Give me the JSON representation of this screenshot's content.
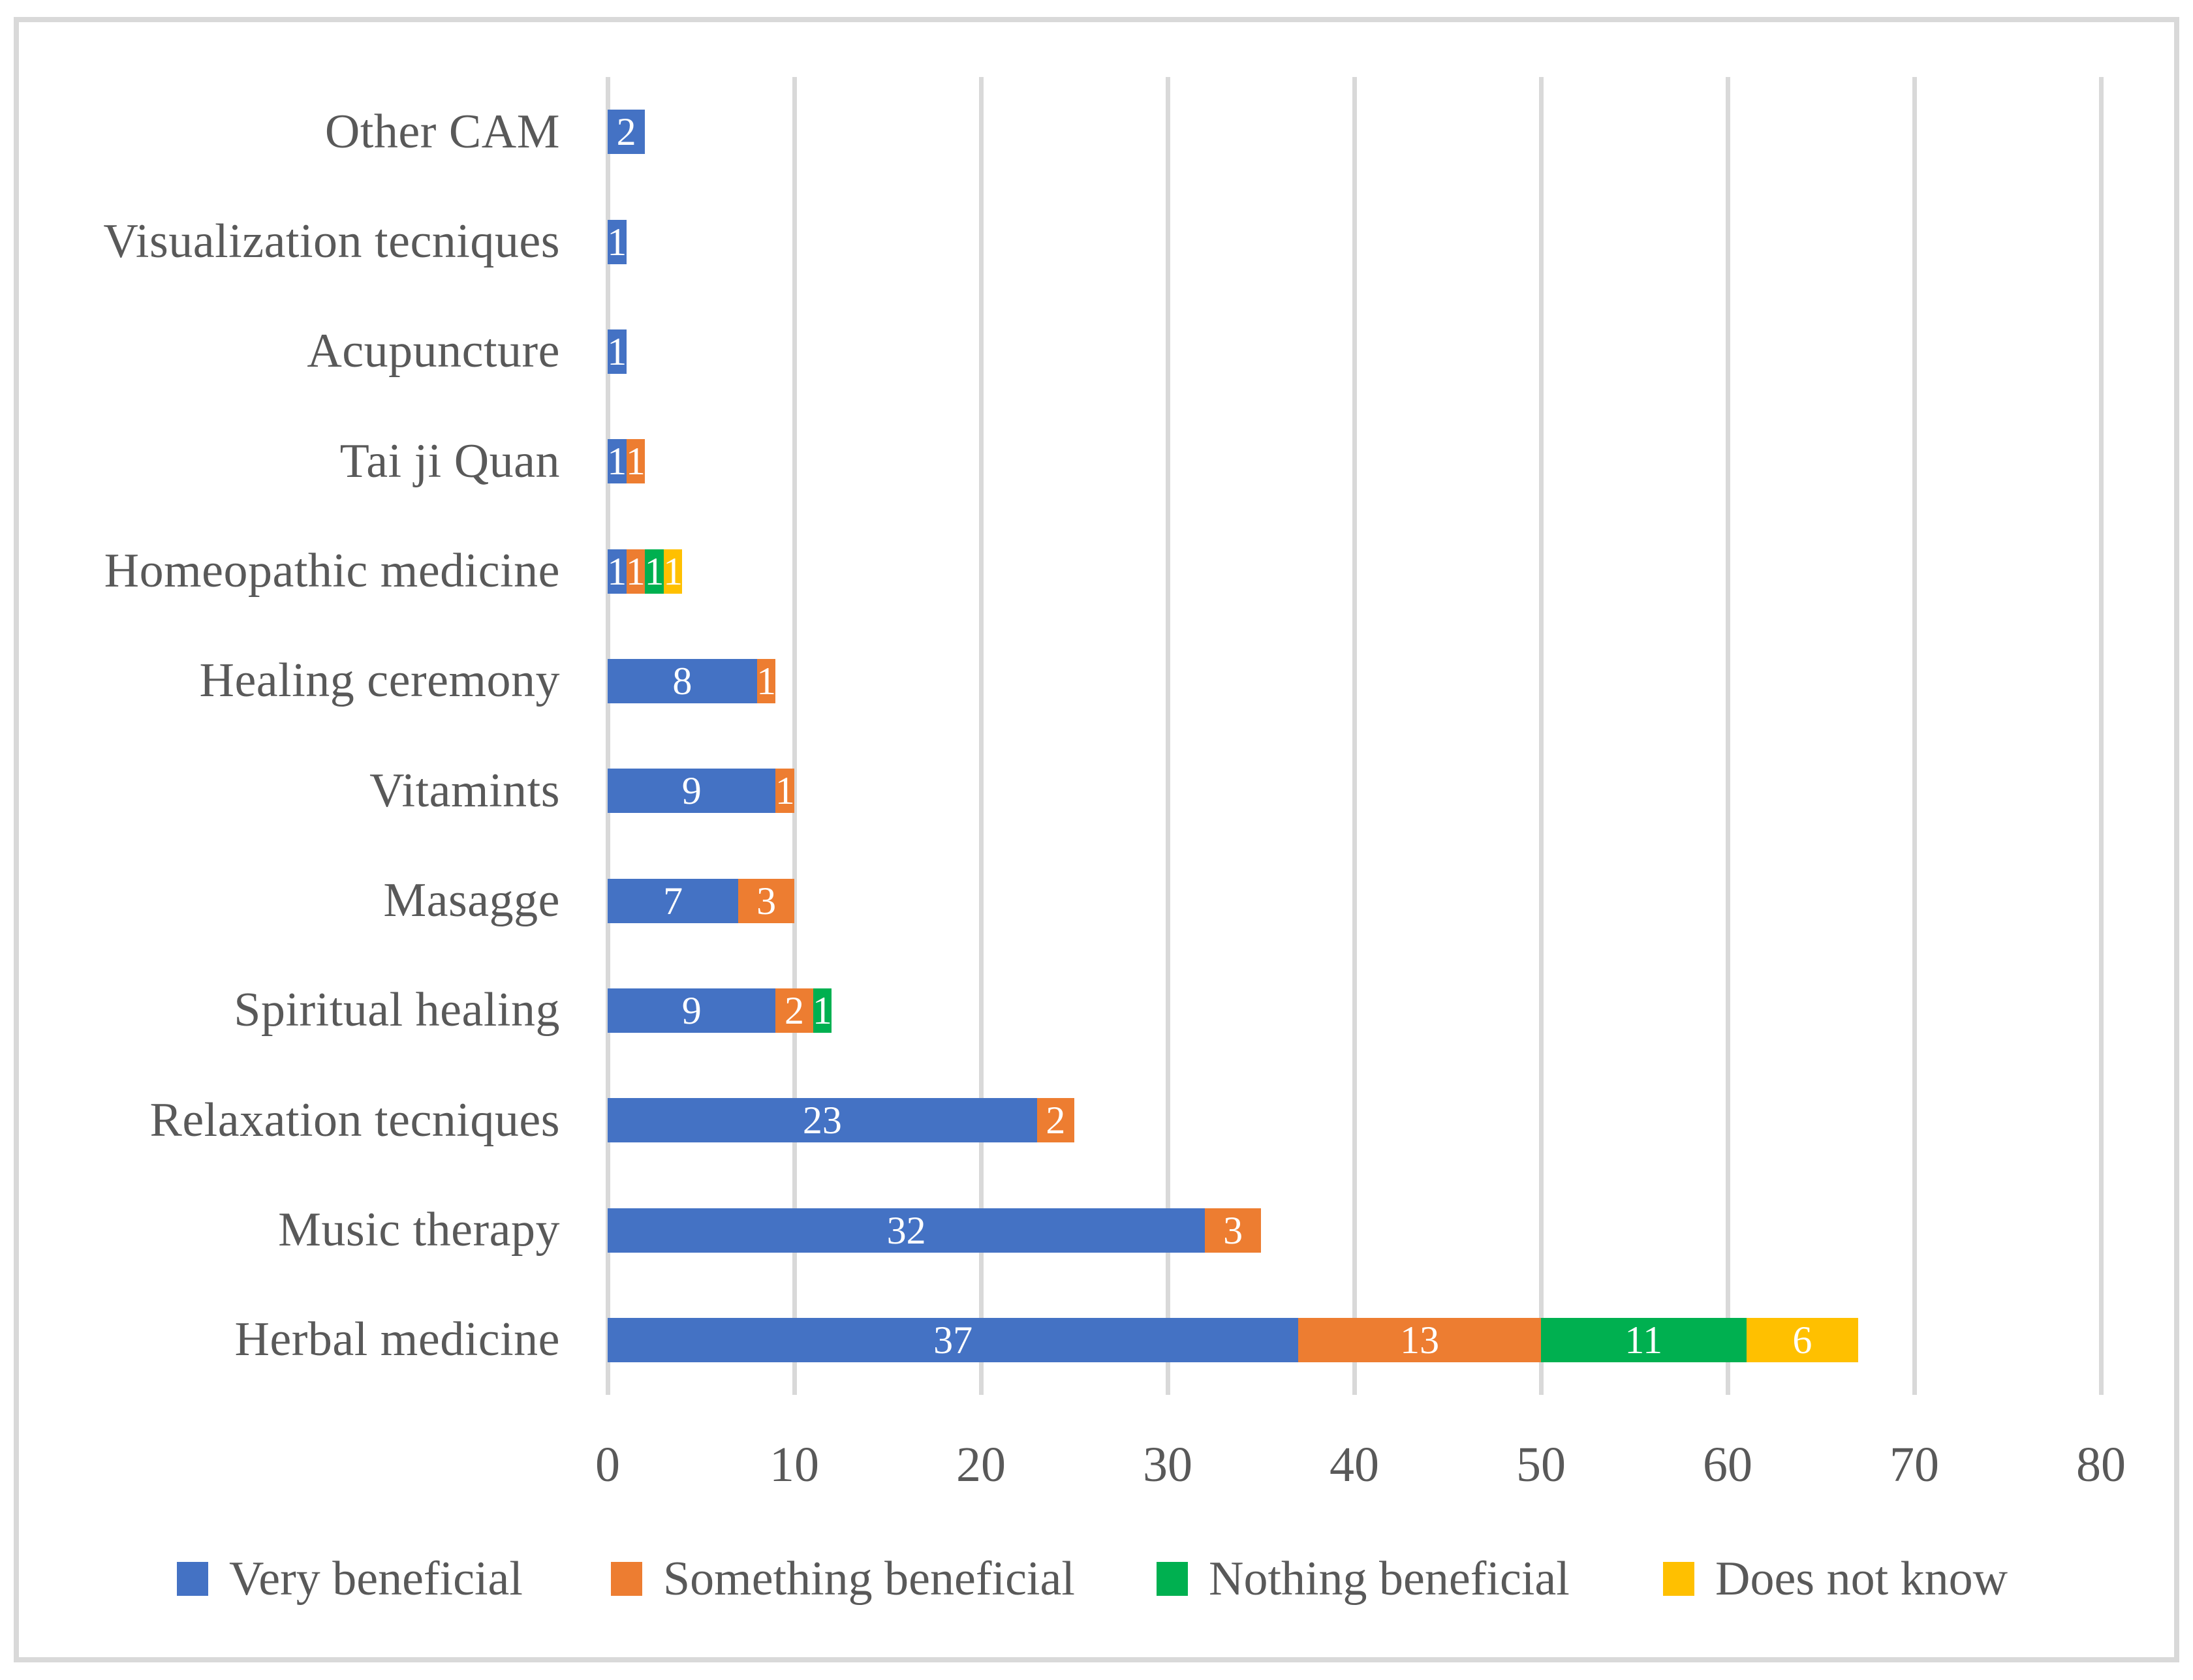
{
  "chart_data": {
    "type": "bar",
    "orientation": "horizontal",
    "stacked": true,
    "title": "",
    "categories": [
      "Other CAM",
      "Visualization tecniques",
      "Acupuncture",
      "Tai ji Quan",
      "Homeopathic medicine",
      "Healing ceremony",
      "Vitamints",
      "Masagge",
      "Spiritual healing",
      "Relaxation tecniques",
      "Music therapy",
      "Herbal medicine"
    ],
    "series": [
      {
        "name": "Very beneficial",
        "color": "#4472C4",
        "values": [
          2,
          1,
          1,
          1,
          1,
          8,
          9,
          7,
          9,
          23,
          32,
          37
        ]
      },
      {
        "name": "Something beneficial",
        "color": "#ED7D31",
        "values": [
          0,
          0,
          0,
          1,
          1,
          1,
          1,
          3,
          2,
          2,
          3,
          13
        ]
      },
      {
        "name": "Nothing beneficial",
        "color": "#00B050",
        "values": [
          0,
          0,
          0,
          0,
          1,
          0,
          0,
          0,
          1,
          0,
          0,
          11
        ]
      },
      {
        "name": "Does not know",
        "color": "#FFC000",
        "values": [
          0,
          0,
          0,
          0,
          1,
          0,
          0,
          0,
          0,
          0,
          0,
          6
        ]
      }
    ],
    "x_ticks": [
      0,
      10,
      20,
      30,
      40,
      50,
      60,
      70,
      80
    ],
    "xlim": [
      0,
      80
    ],
    "grid": true,
    "data_labels": true,
    "legend_position": "bottom",
    "text_color": "#595959",
    "gridline_color": "#D9D9D9"
  }
}
